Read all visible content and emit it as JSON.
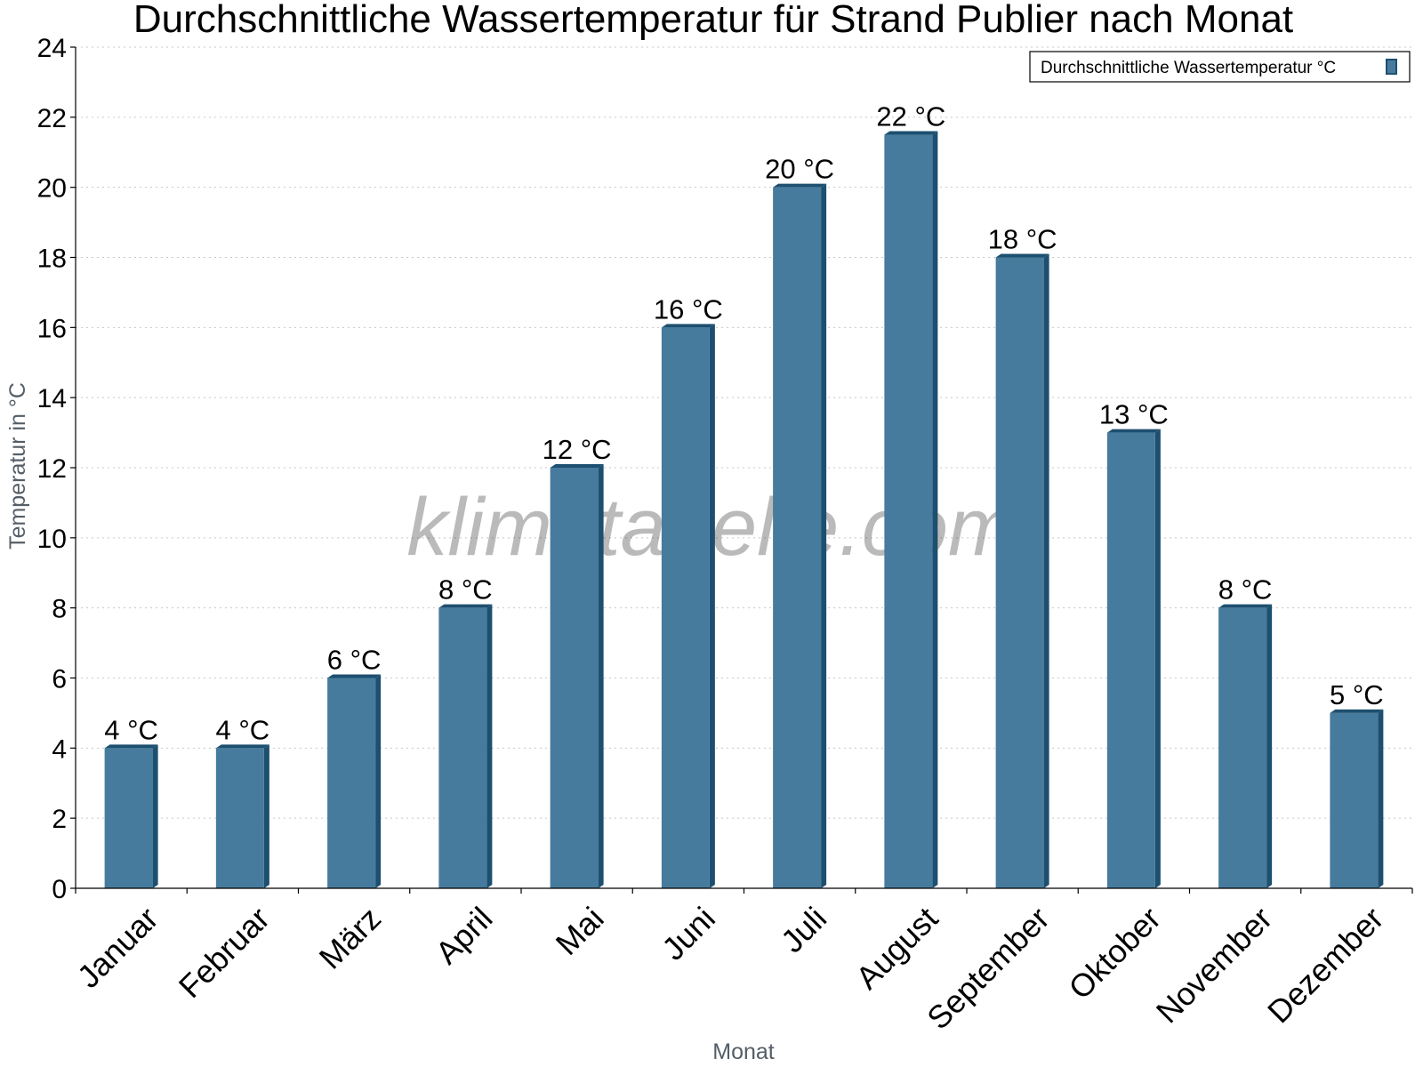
{
  "chart_data": {
    "type": "bar",
    "title": "Durchschnittliche Wassertemperatur für Strand Publier nach Monat",
    "xlabel": "Monat",
    "ylabel": "Temperatur in °C",
    "categories": [
      "Januar",
      "Februar",
      "März",
      "April",
      "Mai",
      "Juni",
      "Juli",
      "August",
      "September",
      "Oktober",
      "November",
      "Dezember"
    ],
    "series": [
      {
        "name": "Durchschnittliche Wassertemperatur °C",
        "values": [
          4,
          4,
          6,
          8,
          12,
          16,
          20,
          21.5,
          18,
          13,
          8,
          5
        ],
        "labels": [
          "4 °C",
          "4 °C",
          "6 °C",
          "8 °C",
          "12 °C",
          "16 °C",
          "20 °C",
          "22 °C",
          "18 °C",
          "13 °C",
          "8 °C",
          "5 °C"
        ]
      }
    ],
    "ylim": [
      0,
      24
    ],
    "yticks": [
      0,
      2,
      4,
      6,
      8,
      10,
      12,
      14,
      16,
      18,
      20,
      22,
      24
    ],
    "grid": true,
    "legend_position": "top-right",
    "colors": {
      "bar_face": "#467b9d",
      "bar_side": "#1d4f70",
      "grid": "#c8c8c8",
      "axis": "#000000"
    },
    "watermark": "klimatabelle.com"
  }
}
